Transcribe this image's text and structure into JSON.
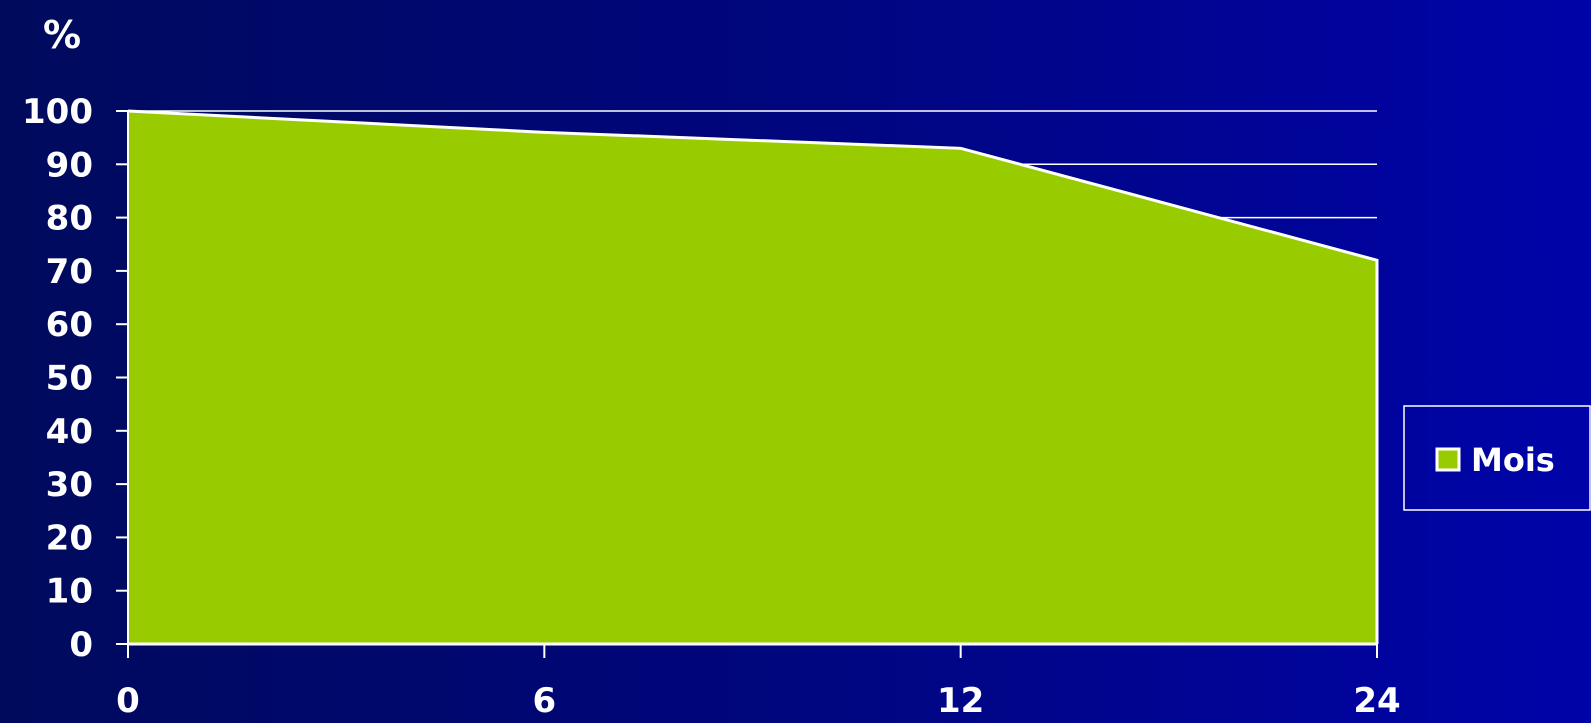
{
  "chart_data": {
    "type": "area",
    "title": "",
    "ylabel": "%",
    "xlabel": "",
    "x": [
      "0",
      "6",
      "12",
      "24"
    ],
    "series": [
      {
        "name": "Mois",
        "values": [
          100,
          96,
          93,
          72
        ]
      }
    ],
    "ylim": [
      0,
      100
    ],
    "yticks": [
      0,
      10,
      20,
      30,
      40,
      50,
      60,
      70,
      80,
      90,
      100
    ],
    "grid": true,
    "legend_position": "right",
    "colors": {
      "area_fill": "#99cc00",
      "line": "#ffffff",
      "grid": "#ffffff",
      "text": "#ffffff"
    }
  }
}
